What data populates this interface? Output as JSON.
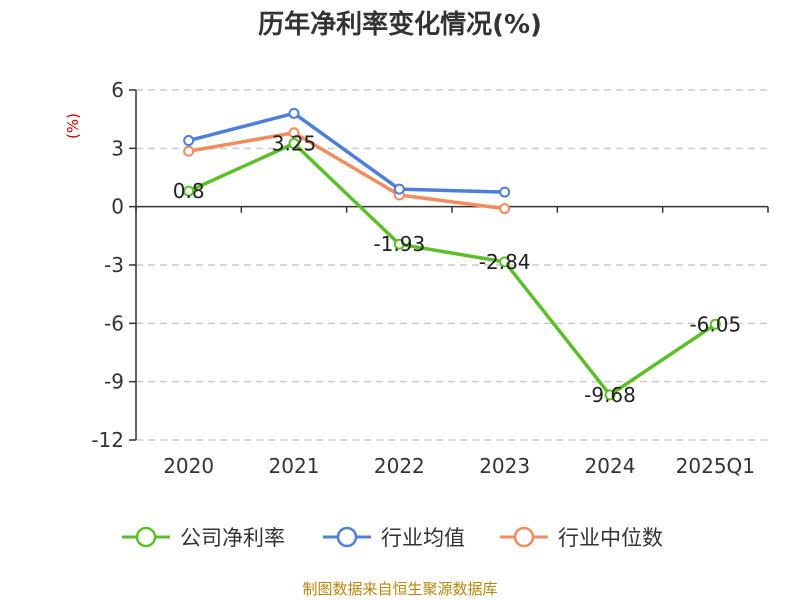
{
  "chart_data": {
    "type": "line",
    "title": "历年净利率变化情况(%)",
    "ylabel": "(%)",
    "categories": [
      "2020",
      "2021",
      "2022",
      "2023",
      "2024",
      "2025Q1"
    ],
    "ylim": [
      -12,
      6
    ],
    "yticks": [
      6,
      3,
      0,
      -3,
      -6,
      -9,
      -12
    ],
    "grid": true,
    "legend_position": "bottom",
    "series": [
      {
        "name": "公司净利率",
        "color": "#5cbf2a",
        "values": [
          0.8,
          3.25,
          -1.93,
          -2.84,
          -9.68,
          -6.05
        ],
        "labels": [
          "0.8",
          "3.25",
          "-1.93",
          "-2.84",
          "-9.68",
          "-6.05"
        ]
      },
      {
        "name": "行业均值",
        "color": "#4d7fd9",
        "values": [
          3.4,
          4.8,
          0.9,
          0.75,
          null,
          null
        ]
      },
      {
        "name": "行业中位数",
        "color": "#f28c5e",
        "values": [
          2.85,
          3.8,
          0.6,
          -0.1,
          null,
          null
        ]
      }
    ]
  },
  "source": "制图数据来自恒生聚源数据库"
}
